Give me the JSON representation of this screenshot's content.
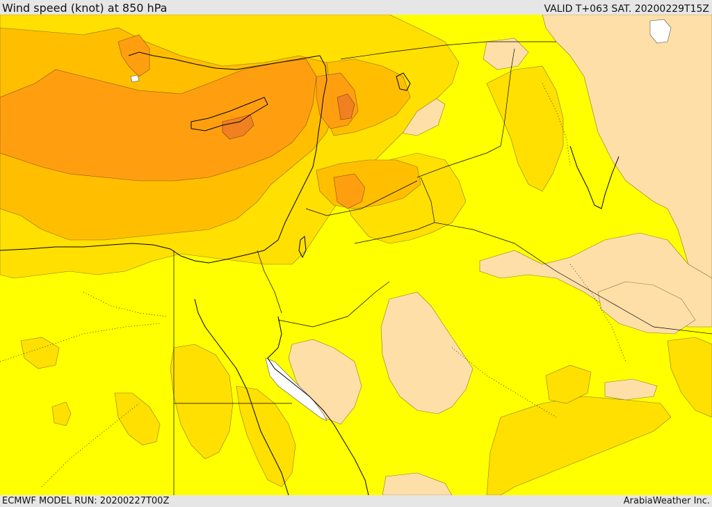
{
  "header": {
    "title": "Wind speed (knot) at 850 hPa",
    "valid": "VALID T+063 SAT. 20200229T15Z"
  },
  "footer": {
    "model_run": "ECMWF MODEL RUN: 20200227T00Z",
    "credit": "ArabiaWeather Inc."
  },
  "map": {
    "colors": {
      "calm": "#ffffff",
      "low": "#ffdfa8",
      "moderate": "#ffff00",
      "fresh": "#ffe000",
      "strong": "#ffbf00",
      "stronger": "#ff9f10",
      "strongest": "#f08020"
    }
  }
}
